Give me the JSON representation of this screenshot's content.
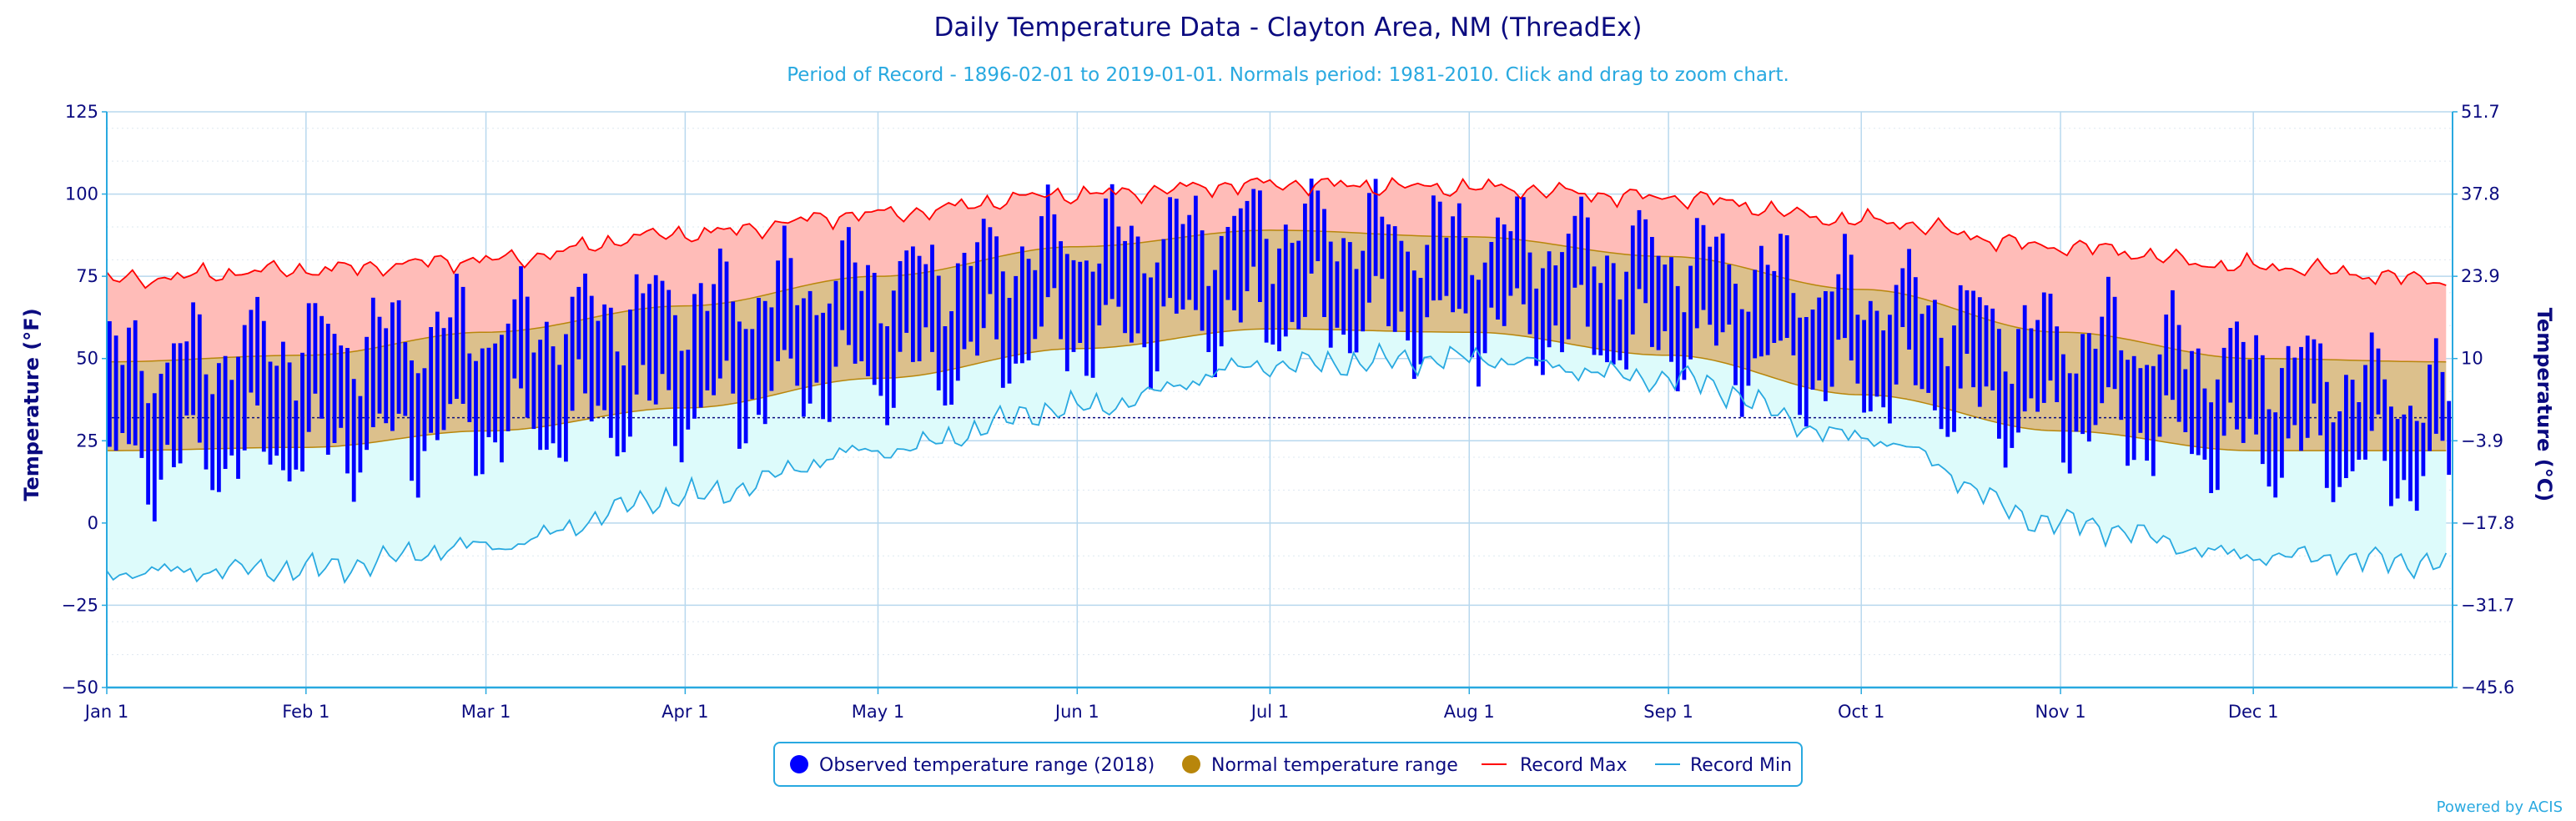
{
  "chart_data": {
    "type": "area",
    "title": "Daily Temperature Data - Clayton Area, NM (ThreadEx)",
    "subtitle": "Period of Record - 1896-02-01 to 2019-01-01. Normals period: 1981-2010. Click and drag to zoom chart.",
    "ylabel": "Temperature (°F)",
    "ylabel_right": "Temperature (°C)",
    "ylim": [
      -50,
      125
    ],
    "y_ticks": [
      "125",
      "100",
      "75",
      "50",
      "25",
      "0",
      "−25",
      "−50"
    ],
    "y_ticks_right": [
      "51.7",
      "37.8",
      "23.9",
      "10",
      "−3.9",
      "−17.8",
      "−31.7",
      "−45.6"
    ],
    "x_ticks": [
      "Jan 1",
      "Feb 1",
      "Mar 1",
      "Apr 1",
      "May 1",
      "Jun 1",
      "Jul 1",
      "Aug 1",
      "Sep 1",
      "Oct 1",
      "Nov 1",
      "Dec 1"
    ],
    "x_tick_days": [
      0,
      31,
      59,
      90,
      120,
      151,
      181,
      212,
      243,
      273,
      304,
      334
    ],
    "days_in_year": 365,
    "freezing_line_f": 32,
    "grid": true,
    "legend_position": "bottom-center",
    "legend": [
      {
        "label": "Observed temperature range (2018)",
        "color": "#0000ff",
        "symbol": "circle"
      },
      {
        "label": "Normal temperature range",
        "color": "#b8860b",
        "symbol": "circle"
      },
      {
        "label": "Record Max",
        "color": "#ff0000",
        "symbol": "line"
      },
      {
        "label": "Record Min",
        "color": "#29a9e0",
        "symbol": "line"
      }
    ],
    "series": [
      {
        "name": "Record Max",
        "x_days": [
          0,
          31,
          59,
          90,
          120,
          151,
          181,
          212,
          243,
          273,
          304,
          334,
          364
        ],
        "values": [
          74,
          77,
          80,
          88,
          94,
          100,
          103,
          102,
          99,
          92,
          84,
          78,
          74
        ]
      },
      {
        "name": "Record Min",
        "x_days": [
          0,
          31,
          59,
          90,
          120,
          151,
          181,
          212,
          243,
          273,
          304,
          334,
          364
        ],
        "values": [
          -15,
          -14,
          -7,
          8,
          22,
          35,
          48,
          50,
          44,
          26,
          0,
          -10,
          -12
        ]
      },
      {
        "name": "Normal temperature range",
        "x_days": [
          0,
          31,
          59,
          90,
          120,
          151,
          181,
          212,
          243,
          273,
          304,
          334,
          364
        ],
        "high": [
          49,
          51,
          58,
          66,
          75,
          84,
          89,
          87,
          81,
          71,
          58,
          50,
          49
        ],
        "low": [
          22,
          23,
          28,
          35,
          44,
          53,
          59,
          58,
          51,
          39,
          28,
          22,
          22
        ]
      },
      {
        "name": "Observed temperature range (2018)",
        "x_days": [
          0,
          31,
          59,
          90,
          120,
          151,
          181,
          212,
          243,
          273,
          304,
          334,
          364
        ],
        "high": [
          52,
          58,
          62,
          70,
          77,
          88,
          93,
          89,
          84,
          72,
          60,
          52,
          40
        ],
        "low": [
          15,
          20,
          25,
          32,
          43,
          54,
          60,
          58,
          52,
          40,
          28,
          20,
          12
        ]
      }
    ]
  },
  "footer": {
    "credit": "Powered by ACIS"
  }
}
